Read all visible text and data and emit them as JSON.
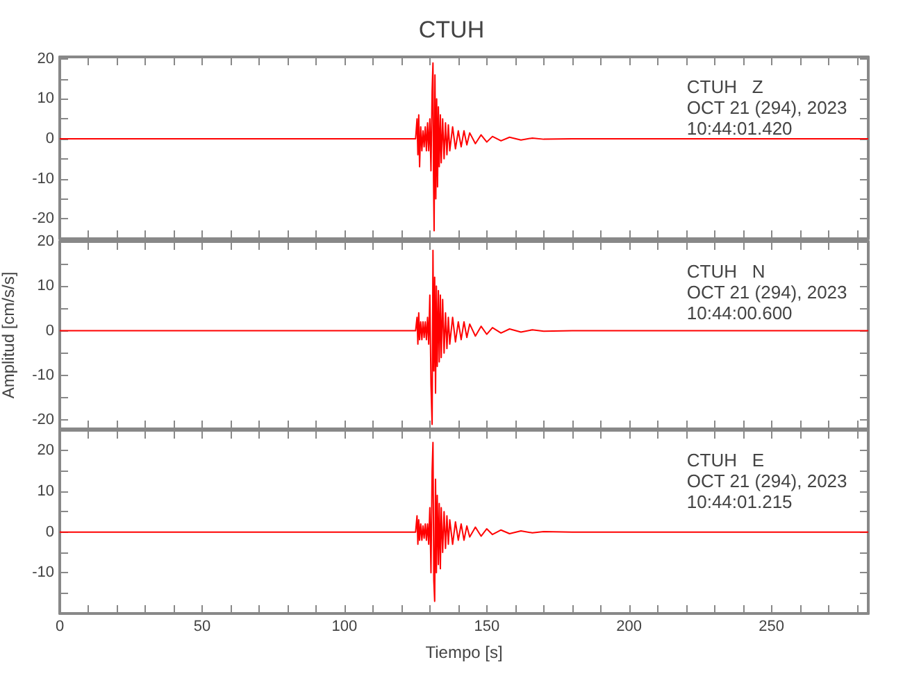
{
  "chart_data": [
    {
      "type": "line",
      "title": "CTUH",
      "annotations": [
        "CTUH   Z",
        "OCT 21 (294), 2023",
        "10:44:01.420"
      ],
      "tick_labels": "y",
      "xlim": [
        0,
        284
      ],
      "xticks": [
        0,
        {
          "value": 10,
          "label": null
        },
        {
          "value": 20,
          "label": null
        },
        {
          "value": 30,
          "label": null
        },
        {
          "value": 40,
          "label": null
        },
        50,
        {
          "value": 60,
          "label": null
        },
        {
          "value": 70,
          "label": null
        },
        {
          "value": 80,
          "label": null
        },
        {
          "value": 90,
          "label": null
        },
        100,
        {
          "value": 110,
          "label": null
        },
        {
          "value": 120,
          "label": null
        },
        {
          "value": 130,
          "label": null
        },
        {
          "value": 140,
          "label": null
        },
        150,
        {
          "value": 160,
          "label": null
        },
        {
          "value": 170,
          "label": null
        },
        {
          "value": 180,
          "label": null
        },
        {
          "value": 190,
          "label": null
        },
        200,
        {
          "value": 210,
          "label": null
        },
        {
          "value": 220,
          "label": null
        },
        {
          "value": 230,
          "label": null
        },
        {
          "value": 240,
          "label": null
        },
        250,
        {
          "value": 260,
          "label": null
        },
        {
          "value": 270,
          "label": null
        },
        {
          "value": 280,
          "label": null
        }
      ],
      "ylim": [
        -25,
        20.5
      ],
      "yticks": [
        -20,
        {
          "value": -15,
          "label": null
        },
        -10,
        {
          "value": -5,
          "label": null
        },
        0,
        {
          "value": 5,
          "label": null
        },
        10,
        {
          "value": 15,
          "label": null
        },
        20
      ],
      "series": [
        {
          "color": "#ff0000",
          "x": [
            0,
            20,
            40,
            60,
            80,
            100,
            120,
            125,
            125.5,
            125.8,
            126.1,
            126.4,
            126.8,
            127.2,
            127.6,
            128,
            128.4,
            128.8,
            129.2,
            129.6,
            130,
            130.4,
            130.8,
            131.1,
            131.3,
            131.5,
            131.8,
            132.1,
            132.4,
            132.7,
            133,
            133.3,
            133.7,
            134,
            134.5,
            135,
            135.5,
            136,
            136.5,
            137,
            138,
            139,
            140,
            141,
            142,
            143,
            144,
            146,
            148,
            150,
            152,
            155,
            158,
            162,
            166,
            170,
            180,
            200,
            230,
            260,
            284
          ],
          "values": [
            0,
            0,
            0,
            0,
            0,
            0,
            0,
            0,
            5,
            -4,
            6,
            -7,
            3,
            -3,
            2,
            -2,
            3,
            -3,
            4,
            -3,
            5,
            -8,
            12,
            19,
            -10,
            -23,
            16,
            -15,
            10,
            -12,
            8,
            -7,
            6,
            -6,
            5,
            -5,
            4,
            -4,
            3.5,
            -3,
            3,
            -2.5,
            2,
            -2,
            2,
            -1.5,
            1.5,
            -1.2,
            1,
            -0.8,
            0.6,
            -0.5,
            0.4,
            -0.3,
            0.2,
            -0.1,
            0,
            0,
            0,
            0,
            0
          ]
        }
      ]
    },
    {
      "type": "line",
      "ylabel": "Amplitud [cm/s/s]",
      "annotations": [
        "CTUH   N",
        "OCT 21 (294), 2023",
        "10:44:00.600"
      ],
      "tick_labels": "y",
      "xlim": [
        0,
        284
      ],
      "xticks": [
        0,
        {
          "value": 10,
          "label": null
        },
        {
          "value": 20,
          "label": null
        },
        {
          "value": 30,
          "label": null
        },
        {
          "value": 40,
          "label": null
        },
        50,
        {
          "value": 60,
          "label": null
        },
        {
          "value": 70,
          "label": null
        },
        {
          "value": 80,
          "label": null
        },
        {
          "value": 90,
          "label": null
        },
        100,
        {
          "value": 110,
          "label": null
        },
        {
          "value": 120,
          "label": null
        },
        {
          "value": 130,
          "label": null
        },
        {
          "value": 140,
          "label": null
        },
        150,
        {
          "value": 160,
          "label": null
        },
        {
          "value": 170,
          "label": null
        },
        {
          "value": 180,
          "label": null
        },
        {
          "value": 190,
          "label": null
        },
        200,
        {
          "value": 210,
          "label": null
        },
        {
          "value": 220,
          "label": null
        },
        {
          "value": 230,
          "label": null
        },
        {
          "value": 240,
          "label": null
        },
        250,
        {
          "value": 260,
          "label": null
        },
        {
          "value": 270,
          "label": null
        },
        {
          "value": 280,
          "label": null
        }
      ],
      "ylim": [
        -22,
        20
      ],
      "yticks": [
        -20,
        {
          "value": -15,
          "label": null
        },
        -10,
        {
          "value": -5,
          "label": null
        },
        0,
        {
          "value": 5,
          "label": null
        },
        10,
        {
          "value": 15,
          "label": null
        },
        20
      ],
      "series": [
        {
          "color": "#ff0000",
          "x": [
            0,
            20,
            40,
            60,
            80,
            100,
            120,
            125,
            125.5,
            125.8,
            126.1,
            126.4,
            126.8,
            127.2,
            127.6,
            128,
            128.4,
            128.8,
            129.2,
            129.6,
            130,
            130.4,
            130.8,
            131.1,
            131.4,
            131.7,
            132,
            132.3,
            132.6,
            133,
            133.3,
            133.7,
            134,
            134.5,
            135,
            135.5,
            136,
            136.5,
            137,
            138,
            139,
            140,
            141,
            142,
            143,
            144,
            146,
            148,
            150,
            152,
            155,
            158,
            162,
            166,
            170,
            180,
            200,
            230,
            260,
            284
          ],
          "values": [
            0,
            0,
            0,
            0,
            0,
            0,
            0,
            0,
            3,
            -3,
            4,
            -2,
            2,
            -2,
            2,
            -1.5,
            2,
            -2,
            3,
            -3,
            8,
            -12,
            -21,
            18,
            -9,
            12,
            -14,
            10,
            -8,
            9,
            -7,
            8,
            -6,
            7,
            -5,
            4,
            -4,
            3,
            -3,
            3,
            -2.5,
            2,
            -2,
            2,
            -1.5,
            1.5,
            -1.2,
            1,
            -0.8,
            0.7,
            -0.5,
            0.4,
            -0.3,
            0.2,
            -0.1,
            0,
            0,
            0,
            0,
            0
          ]
        }
      ]
    },
    {
      "type": "line",
      "xlabel": "Tiempo [s]",
      "annotations": [
        "CTUH   E",
        "OCT 21 (294), 2023",
        "10:44:01.215"
      ],
      "xlim": [
        0,
        284
      ],
      "xticks": [
        0,
        {
          "value": 10,
          "label": null
        },
        {
          "value": 20,
          "label": null
        },
        {
          "value": 30,
          "label": null
        },
        {
          "value": 40,
          "label": null
        },
        50,
        {
          "value": 60,
          "label": null
        },
        {
          "value": 70,
          "label": null
        },
        {
          "value": 80,
          "label": null
        },
        {
          "value": 90,
          "label": null
        },
        100,
        {
          "value": 110,
          "label": null
        },
        {
          "value": 120,
          "label": null
        },
        {
          "value": 130,
          "label": null
        },
        {
          "value": 140,
          "label": null
        },
        150,
        {
          "value": 160,
          "label": null
        },
        {
          "value": 170,
          "label": null
        },
        {
          "value": 180,
          "label": null
        },
        {
          "value": 190,
          "label": null
        },
        200,
        {
          "value": 210,
          "label": null
        },
        {
          "value": 220,
          "label": null
        },
        {
          "value": 230,
          "label": null
        },
        {
          "value": 240,
          "label": null
        },
        250,
        {
          "value": 260,
          "label": null
        },
        {
          "value": 270,
          "label": null
        },
        {
          "value": 280,
          "label": null
        }
      ],
      "ylim": [
        -20,
        25
      ],
      "yticks": [
        {
          "value": -15,
          "label": null
        },
        -10,
        {
          "value": -5,
          "label": null
        },
        0,
        {
          "value": 5,
          "label": null
        },
        10,
        {
          "value": 15,
          "label": null
        },
        20
      ],
      "series": [
        {
          "color": "#ff0000",
          "x": [
            0,
            20,
            40,
            60,
            80,
            100,
            120,
            125,
            125.5,
            125.8,
            126.1,
            126.4,
            126.8,
            127.2,
            127.6,
            128,
            128.4,
            128.8,
            129.2,
            129.6,
            130,
            130.4,
            130.8,
            131.1,
            131.4,
            131.7,
            132,
            132.3,
            132.6,
            133,
            133.3,
            133.7,
            134,
            134.5,
            135,
            135.5,
            136,
            136.5,
            137,
            138,
            139,
            140,
            141,
            142,
            143,
            144,
            146,
            148,
            150,
            152,
            155,
            158,
            162,
            166,
            170,
            180,
            200,
            230,
            260,
            284
          ],
          "values": [
            0,
            0,
            0,
            0,
            0,
            0,
            0,
            0,
            4,
            -3,
            3,
            -2,
            2,
            -2,
            1.5,
            -1.5,
            2,
            -2,
            2,
            -3,
            6,
            -10,
            15,
            22,
            -12,
            -17,
            13,
            -10,
            9,
            -8,
            7,
            -9,
            6,
            -5,
            5,
            -4,
            4,
            -3,
            3,
            -3,
            2.5,
            -2,
            2,
            -2,
            1.5,
            -1.2,
            1.2,
            -1,
            0.8,
            -0.6,
            0.5,
            -0.4,
            0.3,
            -0.2,
            0.1,
            0,
            0,
            0,
            0,
            0
          ]
        }
      ]
    }
  ]
}
